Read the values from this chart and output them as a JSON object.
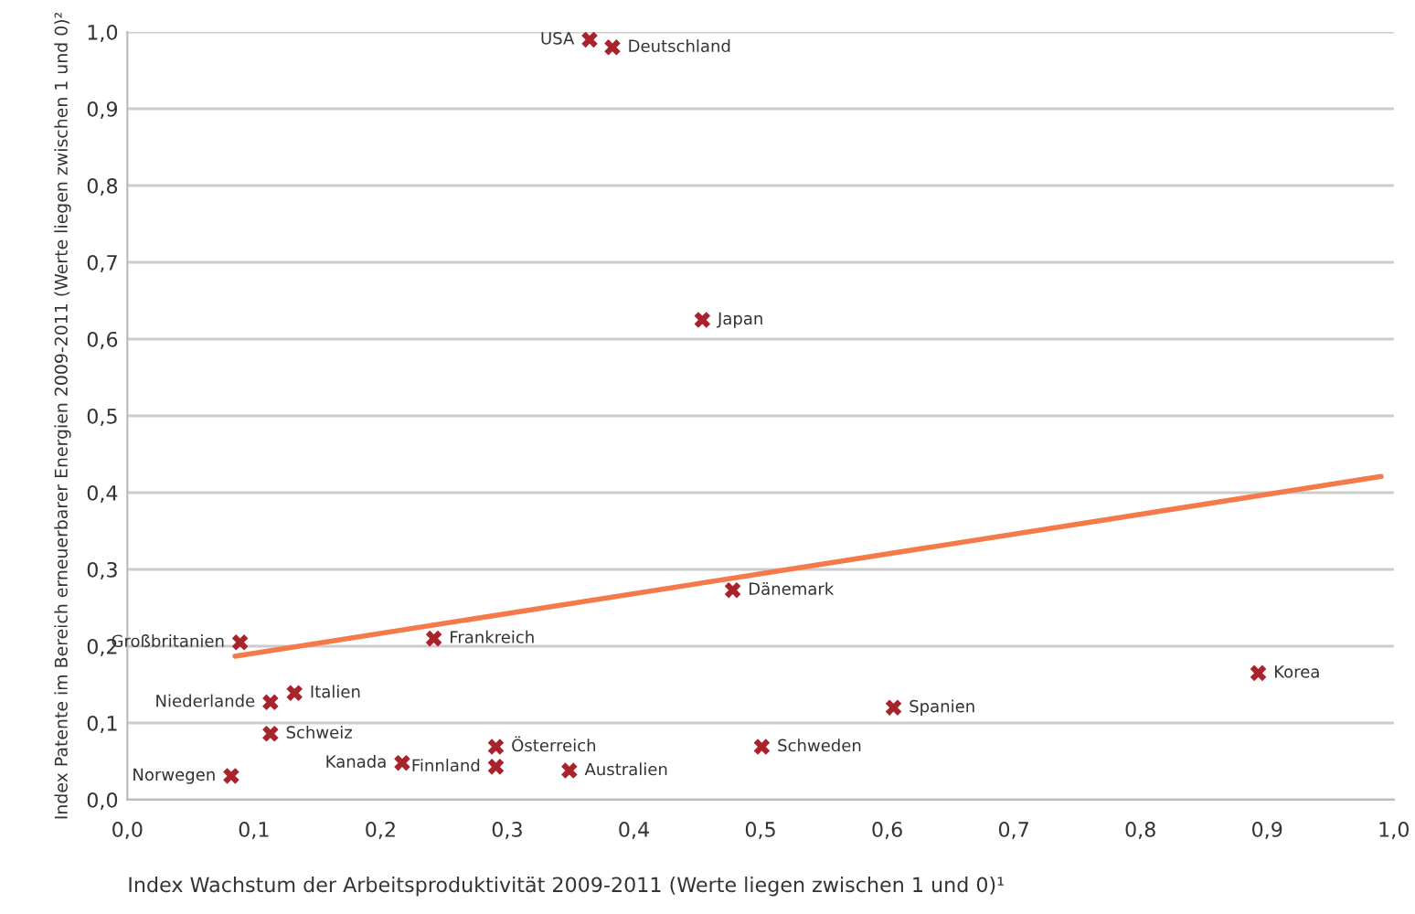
{
  "chart_data": {
    "type": "scatter",
    "xlabel": "Index Wachstum der Arbeitsproduktivität 2009-2011 (Werte liegen zwischen 1 und 0)¹",
    "ylabel": "Index Patente im Bereich erneuerbarer Energien 2009-2011 (Werte liegen zwischen 1 und 0)²",
    "series": [
      {
        "color": "#a8232b",
        "marker": "cross",
        "x": [
          0.365,
          0.383,
          0.454,
          0.478,
          0.242,
          0.089,
          0.132,
          0.113,
          0.113,
          0.082,
          0.217,
          0.291,
          0.291,
          0.349,
          0.501,
          0.605,
          0.893
        ],
        "values": [
          0.99,
          0.98,
          0.625,
          0.273,
          0.21,
          0.205,
          0.139,
          0.127,
          0.086,
          0.031,
          0.048,
          0.069,
          0.043,
          0.038,
          0.069,
          0.12,
          0.165
        ]
      },
      {
        "type": "line",
        "color": "#f47a4a",
        "x": [
          0.085,
          0.99
        ],
        "values": [
          0.187,
          0.421
        ]
      }
    ],
    "annotations": [
      {
        "text": "USA",
        "x": 0.365,
        "y": 0.99
      },
      {
        "text": "Deutschland",
        "x": 0.383,
        "y": 0.98
      },
      {
        "text": "Japan",
        "x": 0.454,
        "y": 0.625
      },
      {
        "text": "Dänemark",
        "x": 0.478,
        "y": 0.273
      },
      {
        "text": "Frankreich",
        "x": 0.242,
        "y": 0.21
      },
      {
        "text": "Großbritanien",
        "x": 0.089,
        "y": 0.205
      },
      {
        "text": "Italien",
        "x": 0.132,
        "y": 0.139
      },
      {
        "text": "Niederlande",
        "x": 0.113,
        "y": 0.127
      },
      {
        "text": "Schweiz",
        "x": 0.113,
        "y": 0.086
      },
      {
        "text": "Norwegen",
        "x": 0.082,
        "y": 0.031
      },
      {
        "text": "Kanada",
        "x": 0.217,
        "y": 0.048
      },
      {
        "text": "Österreich",
        "x": 0.291,
        "y": 0.069
      },
      {
        "text": "Finnland",
        "x": 0.291,
        "y": 0.043
      },
      {
        "text": "Australien",
        "x": 0.349,
        "y": 0.038
      },
      {
        "text": "Schweden",
        "x": 0.501,
        "y": 0.069
      },
      {
        "text": "Spanien",
        "x": 0.605,
        "y": 0.12
      },
      {
        "text": "Korea",
        "x": 0.893,
        "y": 0.165
      }
    ],
    "xlim": [
      0,
      1
    ],
    "ylim": [
      0,
      1
    ],
    "xticks": [
      {
        "value": 0,
        "label": "0,0"
      },
      {
        "value": 0.1,
        "label": "0,1"
      },
      {
        "value": 0.2,
        "label": "0,2"
      },
      {
        "value": 0.3,
        "label": "0,3"
      },
      {
        "value": 0.4,
        "label": "0,4"
      },
      {
        "value": 0.5,
        "label": "0,5"
      },
      {
        "value": 0.6,
        "label": "0,6"
      },
      {
        "value": 0.7,
        "label": "0,7"
      },
      {
        "value": 0.8,
        "label": "0,8"
      },
      {
        "value": 0.9,
        "label": "0,9"
      },
      {
        "value": 1,
        "label": "1,0"
      }
    ],
    "yticks": [
      {
        "value": 0,
        "label": "0,0"
      },
      {
        "value": 0.1,
        "label": "0,1"
      },
      {
        "value": 0.2,
        "label": "0,2"
      },
      {
        "value": 0.3,
        "label": "0,3"
      },
      {
        "value": 0.4,
        "label": "0,4"
      },
      {
        "value": 0.5,
        "label": "0,5"
      },
      {
        "value": 0.6,
        "label": "0,6"
      },
      {
        "value": 0.7,
        "label": "0,7"
      },
      {
        "value": 0.8,
        "label": "0,8"
      },
      {
        "value": 0.9,
        "label": "0,9"
      },
      {
        "value": 1,
        "label": "1,0"
      }
    ],
    "grid": "y",
    "legend": false
  }
}
